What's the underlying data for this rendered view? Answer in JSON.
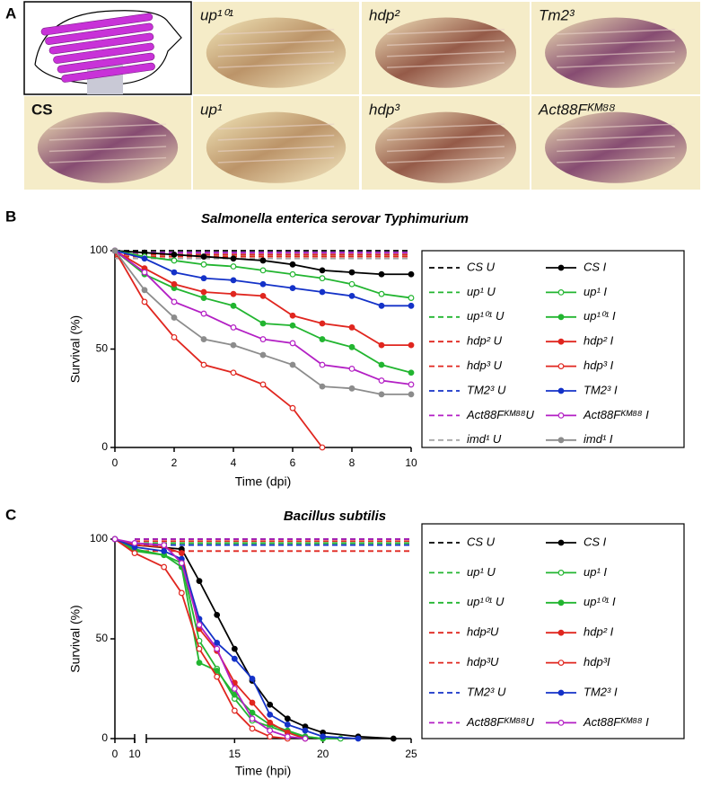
{
  "panel_a": {
    "label": "A",
    "images": [
      {
        "label": null
      },
      {
        "label": "up¹⁰¹"
      },
      {
        "label": "hdp²"
      },
      {
        "label": "Tm2³"
      },
      {
        "label": "CS"
      },
      {
        "label": "up¹"
      },
      {
        "label": "hdp³"
      },
      {
        "label": "Act88Fᴷᴹ⁸⁸"
      }
    ]
  },
  "chart_data": [
    {
      "type": "line",
      "panel_label": "B",
      "title": "Salmonella enterica serovar Typhimurium",
      "xlabel": "Time (dpi)",
      "ylabel": "Survival (%)",
      "xlim": [
        0,
        10
      ],
      "xticks": [
        0,
        2,
        4,
        6,
        8,
        10
      ],
      "ylim": [
        0,
        100
      ],
      "yticks": [
        0,
        50,
        100
      ],
      "series": [
        {
          "name": "CS U",
          "color": "#000000",
          "dash": true,
          "marker": "none",
          "x": [
            0,
            10
          ],
          "values": [
            100,
            100
          ]
        },
        {
          "name": "up¹ U",
          "color": "#22b530",
          "dash": true,
          "marker": "none",
          "x": [
            0,
            10
          ],
          "values": [
            99,
            99
          ]
        },
        {
          "name": "up¹⁰¹ U",
          "color": "#22b530",
          "dash": true,
          "marker": "none",
          "x": [
            0,
            10
          ],
          "values": [
            98,
            98
          ]
        },
        {
          "name": "hdp² U",
          "color": "#e0261f",
          "dash": true,
          "marker": "none",
          "x": [
            0,
            10
          ],
          "values": [
            98,
            98
          ]
        },
        {
          "name": "hdp³ U",
          "color": "#e0261f",
          "dash": true,
          "marker": "none",
          "x": [
            0,
            10
          ],
          "values": [
            97,
            97
          ]
        },
        {
          "name": "TM2³ U",
          "color": "#1432c8",
          "dash": true,
          "marker": "none",
          "x": [
            0,
            10
          ],
          "values": [
            99,
            99
          ]
        },
        {
          "name": "Act88Fᴷᴹ⁸⁸U",
          "color": "#b31fc4",
          "dash": true,
          "marker": "none",
          "x": [
            0,
            10
          ],
          "values": [
            99,
            99
          ]
        },
        {
          "name": "imd¹ U",
          "color": "#a6a6a6",
          "dash": true,
          "marker": "none",
          "x": [
            0,
            10
          ],
          "values": [
            96,
            96
          ]
        },
        {
          "name": "CS I",
          "color": "#000000",
          "dash": false,
          "marker": "filled",
          "x": [
            0,
            1,
            2,
            3,
            4,
            5,
            6,
            7,
            8,
            9,
            10
          ],
          "values": [
            100,
            99,
            98,
            97,
            96,
            95,
            93,
            90,
            89,
            88,
            88
          ]
        },
        {
          "name": "up¹ I",
          "color": "#22b530",
          "dash": false,
          "marker": "open",
          "x": [
            0,
            1,
            2,
            3,
            4,
            5,
            6,
            7,
            8,
            9,
            10
          ],
          "values": [
            100,
            97,
            95,
            93,
            92,
            90,
            88,
            86,
            83,
            78,
            76
          ]
        },
        {
          "name": "up¹⁰¹ I",
          "color": "#22b530",
          "dash": false,
          "marker": "filled",
          "x": [
            0,
            1,
            2,
            3,
            4,
            5,
            6,
            7,
            8,
            9,
            10
          ],
          "values": [
            100,
            88,
            81,
            76,
            72,
            63,
            62,
            55,
            51,
            42,
            38
          ]
        },
        {
          "name": "hdp² I",
          "color": "#e0261f",
          "dash": false,
          "marker": "filled",
          "x": [
            0,
            1,
            2,
            3,
            4,
            5,
            6,
            7,
            8,
            9,
            10
          ],
          "values": [
            100,
            91,
            83,
            79,
            78,
            77,
            67,
            63,
            61,
            52,
            52
          ]
        },
        {
          "name": "hdp³ I",
          "color": "#e0261f",
          "dash": false,
          "marker": "open",
          "x": [
            0,
            1,
            2,
            3,
            4,
            5,
            6,
            7
          ],
          "values": [
            100,
            74,
            56,
            42,
            38,
            32,
            20,
            0
          ]
        },
        {
          "name": "TM2³ I",
          "color": "#1432c8",
          "dash": false,
          "marker": "filled",
          "x": [
            0,
            1,
            2,
            3,
            4,
            5,
            6,
            7,
            8,
            9,
            10
          ],
          "values": [
            100,
            96,
            89,
            86,
            85,
            83,
            81,
            79,
            77,
            72,
            72
          ]
        },
        {
          "name": "Act88Fᴷᴹ⁸⁸ I",
          "color": "#b31fc4",
          "dash": false,
          "marker": "open",
          "x": [
            0,
            1,
            2,
            3,
            4,
            5,
            6,
            7,
            8,
            9,
            10
          ],
          "values": [
            100,
            89,
            74,
            68,
            61,
            55,
            53,
            42,
            40,
            34,
            32
          ]
        },
        {
          "name": "imd¹ I",
          "color": "#8c8c8c",
          "dash": false,
          "marker": "filled",
          "x": [
            0,
            1,
            2,
            3,
            4,
            5,
            6,
            7,
            8,
            9,
            10
          ],
          "values": [
            100,
            80,
            66,
            55,
            52,
            47,
            42,
            31,
            30,
            27,
            27
          ]
        }
      ]
    },
    {
      "type": "line",
      "panel_label": "C",
      "title": "Bacillus subtilis",
      "xlabel": "Time (hpi)",
      "ylabel": "Survival (%)",
      "xlim": [
        0,
        25
      ],
      "x_break": 10,
      "xticks": [
        0,
        10,
        15,
        20,
        25
      ],
      "ylim": [
        0,
        100
      ],
      "yticks": [
        0,
        50,
        100
      ],
      "series": [
        {
          "name": "CS U",
          "color": "#000000",
          "dash": true,
          "marker": "none",
          "x": [
            10,
            25
          ],
          "values": [
            100,
            100
          ]
        },
        {
          "name": "up¹ U",
          "color": "#22b530",
          "dash": true,
          "marker": "none",
          "x": [
            10,
            25
          ],
          "values": [
            97,
            97
          ]
        },
        {
          "name": "up¹⁰¹ U",
          "color": "#22b530",
          "dash": true,
          "marker": "none",
          "x": [
            10,
            25
          ],
          "values": [
            98,
            98
          ]
        },
        {
          "name": "hdp²U",
          "color": "#e0261f",
          "dash": true,
          "marker": "none",
          "x": [
            10,
            25
          ],
          "values": [
            99,
            99
          ]
        },
        {
          "name": "hdp³U",
          "color": "#e0261f",
          "dash": true,
          "marker": "none",
          "x": [
            10,
            25
          ],
          "values": [
            94,
            94
          ]
        },
        {
          "name": "TM2³ U",
          "color": "#1432c8",
          "dash": true,
          "marker": "none",
          "x": [
            10,
            25
          ],
          "values": [
            97,
            97
          ]
        },
        {
          "name": "Act88Fᴷᴹ⁸⁸U",
          "color": "#b31fc4",
          "dash": true,
          "marker": "none",
          "x": [
            10,
            25
          ],
          "values": [
            100,
            100
          ]
        },
        {
          "name": "CS I",
          "color": "#000000",
          "dash": false,
          "marker": "filled",
          "x": [
            0,
            10,
            12,
            13,
            14,
            15,
            16,
            17,
            18,
            19,
            20,
            22,
            24
          ],
          "values": [
            100,
            97,
            95,
            79,
            62,
            45,
            29,
            17,
            10,
            6,
            3,
            1,
            0
          ]
        },
        {
          "name": "up¹ I",
          "color": "#22b530",
          "dash": false,
          "marker": "open",
          "x": [
            0,
            10,
            11,
            12,
            13,
            14,
            15,
            16,
            17,
            18,
            19,
            20,
            21
          ],
          "values": [
            100,
            95,
            92,
            88,
            49,
            35,
            20,
            9,
            6,
            3,
            1,
            0,
            0
          ]
        },
        {
          "name": "up¹⁰¹ I",
          "color": "#22b530",
          "dash": false,
          "marker": "filled",
          "x": [
            0,
            10,
            11,
            12,
            13,
            14,
            15,
            16,
            17,
            18,
            19,
            20
          ],
          "values": [
            100,
            94,
            92,
            86,
            38,
            34,
            22,
            13,
            7,
            4,
            1,
            0
          ]
        },
        {
          "name": "hdp² I",
          "color": "#e0261f",
          "dash": false,
          "marker": "filled",
          "x": [
            0,
            10,
            11,
            12,
            13,
            14,
            15,
            16,
            17,
            18,
            19
          ],
          "values": [
            100,
            97,
            96,
            93,
            55,
            44,
            28,
            18,
            8,
            3,
            0
          ]
        },
        {
          "name": "hdp³I",
          "color": "#e0261f",
          "dash": false,
          "marker": "open",
          "x": [
            0,
            10,
            11,
            12,
            13,
            14,
            15,
            16,
            17,
            18
          ],
          "values": [
            100,
            93,
            86,
            73,
            45,
            31,
            14,
            5,
            1,
            0
          ]
        },
        {
          "name": "TM2³ I",
          "color": "#1432c8",
          "dash": false,
          "marker": "filled",
          "x": [
            0,
            10,
            11,
            12,
            13,
            14,
            15,
            16,
            17,
            18,
            19,
            20,
            22
          ],
          "values": [
            100,
            96,
            94,
            90,
            60,
            48,
            40,
            30,
            12,
            7,
            4,
            1,
            0
          ]
        },
        {
          "name": "Act88Fᴷᴹ⁸⁸ I",
          "color": "#b31fc4",
          "dash": false,
          "marker": "open",
          "x": [
            0,
            10,
            11,
            12,
            13,
            14,
            15,
            16,
            17,
            18,
            19
          ],
          "values": [
            100,
            98,
            97,
            88,
            57,
            45,
            25,
            10,
            4,
            1,
            0
          ]
        }
      ]
    }
  ]
}
